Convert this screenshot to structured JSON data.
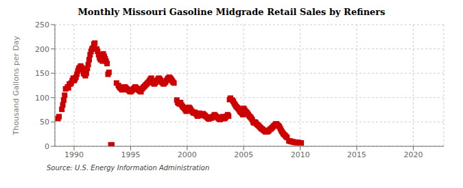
{
  "chart_data": {
    "type": "scatter",
    "title": "Monthly Missouri Gasoline Midgrade Retail Sales by Refiners",
    "y_label": "Thousand Gallons per Day",
    "annotations": [
      "Source: U.S. Energy Information Administration"
    ],
    "color": "#cc0000",
    "marker": "square",
    "grid": true,
    "xlim": [
      1988.3,
      2022.7
    ],
    "ylim": [
      0,
      250
    ],
    "xticks": [
      1990,
      1995,
      2000,
      2005,
      2010,
      2015,
      2020
    ],
    "yticks": [
      0,
      50,
      100,
      150,
      200,
      250
    ],
    "x": [
      1988.583,
      1988.667,
      1988.917,
      1989.0,
      1989.083,
      1989.167,
      1989.25,
      1989.417,
      1989.5,
      1989.583,
      1989.667,
      1989.75,
      1989.833,
      1989.917,
      1990.0,
      1990.083,
      1990.167,
      1990.25,
      1990.333,
      1990.417,
      1990.5,
      1990.583,
      1990.667,
      1990.75,
      1990.833,
      1990.917,
      1991.0,
      1991.083,
      1991.167,
      1991.25,
      1991.333,
      1991.417,
      1991.5,
      1991.583,
      1991.667,
      1991.75,
      1991.833,
      1992.0,
      1992.083,
      1992.167,
      1992.25,
      1992.333,
      1992.5,
      1992.583,
      1992.667,
      1992.75,
      1992.833,
      1992.917,
      1993.0,
      1993.083,
      1993.25,
      1993.333,
      1993.75,
      1993.917,
      1994.0,
      1994.083,
      1994.167,
      1994.25,
      1994.333,
      1994.417,
      1994.5,
      1994.583,
      1994.667,
      1994.75,
      1994.833,
      1994.917,
      1995.0,
      1995.083,
      1995.167,
      1995.25,
      1995.333,
      1995.417,
      1995.5,
      1995.583,
      1995.667,
      1995.75,
      1995.833,
      1995.917,
      1996.0,
      1996.083,
      1996.167,
      1996.25,
      1996.333,
      1996.417,
      1996.5,
      1996.583,
      1996.667,
      1996.75,
      1996.833,
      1996.917,
      1997.0,
      1997.083,
      1997.167,
      1997.25,
      1997.333,
      1997.417,
      1997.5,
      1997.583,
      1997.667,
      1997.75,
      1997.833,
      1997.917,
      1998.0,
      1998.083,
      1998.167,
      1998.25,
      1998.333,
      1998.417,
      1998.5,
      1998.583,
      1998.667,
      1998.75,
      1998.833,
      1999.083,
      1999.167,
      1999.25,
      1999.333,
      1999.417,
      1999.5,
      1999.583,
      1999.667,
      1999.75,
      1999.833,
      1999.917,
      2000.0,
      2000.083,
      2000.167,
      2000.25,
      2000.333,
      2000.417,
      2000.5,
      2000.583,
      2000.667,
      2000.75,
      2000.833,
      2000.917,
      2001.0,
      2001.083,
      2001.167,
      2001.25,
      2001.333,
      2001.417,
      2001.5,
      2001.583,
      2001.667,
      2001.75,
      2001.833,
      2001.917,
      2002.0,
      2002.083,
      2002.167,
      2002.25,
      2002.333,
      2002.417,
      2002.5,
      2002.583,
      2002.667,
      2002.75,
      2002.833,
      2002.917,
      2003.0,
      2003.083,
      2003.167,
      2003.25,
      2003.333,
      2003.417,
      2003.5,
      2003.583,
      2003.667,
      2003.75,
      2003.833,
      2004.0,
      2004.083,
      2004.167,
      2004.25,
      2004.333,
      2004.417,
      2004.5,
      2004.583,
      2004.667,
      2004.75,
      2004.833,
      2004.917,
      2005.0,
      2005.083,
      2005.167,
      2005.25,
      2005.333,
      2005.417,
      2005.5,
      2005.583,
      2005.667,
      2005.75,
      2005.833,
      2005.917,
      2006.0,
      2006.083,
      2006.167,
      2006.25,
      2006.333,
      2006.417,
      2006.5,
      2006.583,
      2006.667,
      2006.75,
      2006.833,
      2006.917,
      2007.0,
      2007.083,
      2007.167,
      2007.25,
      2007.333,
      2007.417,
      2007.5,
      2007.583,
      2007.667,
      2007.75,
      2007.833,
      2007.917,
      2008.0,
      2008.083,
      2008.167,
      2008.25,
      2008.333,
      2008.417,
      2008.5,
      2008.583,
      2008.667,
      2008.75,
      2008.833,
      2009.0,
      2009.083,
      2009.167,
      2009.25,
      2009.333,
      2009.417,
      2009.5,
      2009.583,
      2009.667,
      2009.75,
      2009.833,
      2009.917,
      2010.0,
      2010.083
    ],
    "values": [
      57,
      61,
      76,
      85,
      95,
      105,
      118,
      122,
      120,
      128,
      128,
      130,
      135,
      140,
      135,
      138,
      142,
      148,
      155,
      160,
      162,
      165,
      162,
      158,
      150,
      148,
      145,
      150,
      160,
      168,
      178,
      188,
      195,
      200,
      202,
      210,
      212,
      200,
      195,
      188,
      182,
      178,
      175,
      190,
      185,
      180,
      175,
      170,
      148,
      152,
      3,
      3,
      130,
      125,
      122,
      120,
      118,
      116,
      118,
      120,
      122,
      120,
      118,
      116,
      115,
      113,
      112,
      114,
      116,
      118,
      120,
      122,
      120,
      118,
      116,
      115,
      113,
      112,
      118,
      120,
      122,
      124,
      126,
      128,
      130,
      132,
      135,
      138,
      140,
      135,
      130,
      128,
      130,
      132,
      135,
      138,
      140,
      138,
      135,
      132,
      130,
      128,
      130,
      132,
      135,
      138,
      140,
      142,
      140,
      138,
      135,
      132,
      130,
      95,
      90,
      88,
      87,
      90,
      85,
      82,
      80,
      78,
      75,
      72,
      75,
      78,
      80,
      78,
      75,
      72,
      70,
      68,
      70,
      68,
      65,
      62,
      65,
      68,
      65,
      63,
      65,
      67,
      65,
      63,
      61,
      60,
      58,
      56,
      58,
      60,
      58,
      60,
      62,
      65,
      63,
      61,
      60,
      58,
      56,
      55,
      57,
      59,
      61,
      59,
      57,
      60,
      62,
      65,
      62,
      96,
      99,
      95,
      92,
      88,
      85,
      82,
      80,
      78,
      75,
      72,
      70,
      68,
      65,
      78,
      75,
      72,
      70,
      68,
      65,
      62,
      60,
      58,
      55,
      50,
      48,
      50,
      48,
      45,
      44,
      42,
      40,
      38,
      36,
      35,
      33,
      32,
      30,
      30,
      30,
      31,
      33,
      35,
      36,
      38,
      40,
      42,
      44,
      46,
      46,
      44,
      42,
      40,
      36,
      32,
      29,
      26,
      24,
      22,
      20,
      18,
      11,
      11,
      10,
      10,
      9,
      9,
      8,
      8,
      8,
      8,
      8,
      7,
      7,
      7
    ]
  }
}
